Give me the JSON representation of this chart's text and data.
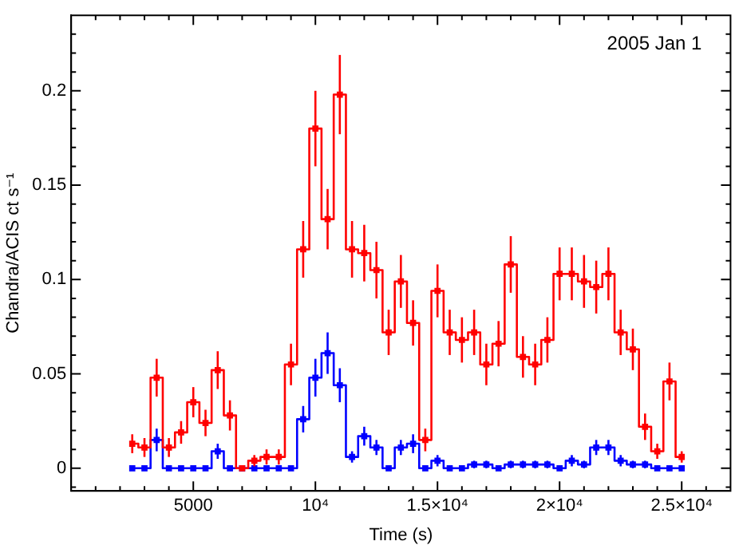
{
  "chart_data": {
    "type": "step",
    "xlabel": "Time (s)",
    "ylabel": "Chandra/ACIS ct s⁻¹",
    "annotations": [
      "2005 Jan 1"
    ],
    "x": [
      2500,
      3000,
      3500,
      4000,
      4500,
      5000,
      5500,
      6000,
      6500,
      7000,
      7500,
      8000,
      8500,
      9000,
      9500,
      10000,
      10500,
      11000,
      11500,
      12000,
      12500,
      13000,
      13500,
      14000,
      14500,
      15000,
      15500,
      16000,
      16500,
      17000,
      17500,
      18000,
      18500,
      19000,
      19500,
      20000,
      20500,
      21000,
      21500,
      22000,
      22500,
      23000,
      23500,
      24000,
      24500,
      25000
    ],
    "series": [
      {
        "color": "#ff0000",
        "values": [
          0.013,
          0.011,
          0.048,
          0.011,
          0.019,
          0.035,
          0.024,
          0.052,
          0.028,
          0,
          0.004,
          0.006,
          0.006,
          0.055,
          0.116,
          0.18,
          0.132,
          0.198,
          0.116,
          0.114,
          0.105,
          0.072,
          0.099,
          0.077,
          0.015,
          0.094,
          0.072,
          0.068,
          0.072,
          0.055,
          0.066,
          0.108,
          0.059,
          0.055,
          0.068,
          0.103,
          0.103,
          0.099,
          0.096,
          0.103,
          0.072,
          0.063,
          0.022,
          0.009,
          0.046,
          0.006
        ],
        "errors": [
          0.005,
          0.005,
          0.01,
          0.005,
          0.006,
          0.008,
          0.007,
          0.01,
          0.008,
          null,
          0.003,
          0.004,
          0.004,
          0.011,
          0.015,
          0.02,
          0.016,
          0.021,
          0.015,
          0.015,
          0.015,
          0.012,
          0.014,
          0.012,
          0.006,
          0.014,
          0.012,
          0.012,
          0.012,
          0.011,
          0.012,
          0.015,
          0.011,
          0.011,
          0.012,
          0.014,
          0.014,
          0.014,
          0.014,
          0.014,
          0.012,
          0.011,
          0.007,
          0.004,
          0.01,
          0.003
        ]
      },
      {
        "color": "#0000ff",
        "values": [
          0,
          0,
          0.015,
          0,
          0,
          0,
          0,
          0.009,
          0,
          0,
          0,
          0,
          0,
          0,
          0.026,
          0.048,
          0.061,
          0.044,
          0.006,
          0.017,
          0.011,
          0,
          0.011,
          0.013,
          0,
          0.004,
          0,
          0,
          0.002,
          0.002,
          0,
          0.002,
          0.002,
          0.002,
          0.002,
          0,
          0.004,
          0.002,
          0.011,
          0.011,
          0.004,
          0.002,
          0.002,
          0,
          0,
          0
        ],
        "errors": [
          null,
          null,
          0.006,
          null,
          null,
          null,
          null,
          0.004,
          null,
          null,
          null,
          null,
          null,
          null,
          0.007,
          0.01,
          0.011,
          0.009,
          0.003,
          0.005,
          0.004,
          null,
          0.004,
          0.005,
          null,
          0.003,
          null,
          null,
          0.002,
          0.002,
          null,
          0.002,
          0.002,
          0.002,
          0.002,
          null,
          0.003,
          0.002,
          0.004,
          0.004,
          0.003,
          0.002,
          0.002,
          null,
          null,
          null
        ]
      }
    ],
    "xlim": [
      0,
      27000
    ],
    "xticks": [
      {
        "value": 1000,
        "label": null
      },
      {
        "value": 2000,
        "label": null
      },
      {
        "value": 3000,
        "label": null
      },
      {
        "value": 4000,
        "label": null
      },
      5000,
      {
        "value": 6000,
        "label": null
      },
      {
        "value": 7000,
        "label": null
      },
      {
        "value": 8000,
        "label": null
      },
      {
        "value": 9000,
        "label": null
      },
      {
        "value": 10000,
        "label": "10⁴"
      },
      {
        "value": 11000,
        "label": null
      },
      {
        "value": 12000,
        "label": null
      },
      {
        "value": 13000,
        "label": null
      },
      {
        "value": 14000,
        "label": null
      },
      {
        "value": 15000,
        "label": "1.5×10⁴"
      },
      {
        "value": 16000,
        "label": null
      },
      {
        "value": 17000,
        "label": null
      },
      {
        "value": 18000,
        "label": null
      },
      {
        "value": 19000,
        "label": null
      },
      {
        "value": 20000,
        "label": "2×10⁴"
      },
      {
        "value": 21000,
        "label": null
      },
      {
        "value": 22000,
        "label": null
      },
      {
        "value": 23000,
        "label": null
      },
      {
        "value": 24000,
        "label": null
      },
      {
        "value": 25000,
        "label": "2.5×10⁴"
      },
      {
        "value": 26000,
        "label": null
      }
    ],
    "ylim": [
      -0.012,
      0.24
    ],
    "yticks": [
      {
        "value": -0.01,
        "label": null
      },
      0,
      {
        "value": 0.01,
        "label": null
      },
      {
        "value": 0.02,
        "label": null
      },
      {
        "value": 0.03,
        "label": null
      },
      {
        "value": 0.04,
        "label": null
      },
      0.05,
      {
        "value": 0.06,
        "label": null
      },
      {
        "value": 0.07,
        "label": null
      },
      {
        "value": 0.08,
        "label": null
      },
      {
        "value": 0.09,
        "label": null
      },
      0.1,
      {
        "value": 0.11,
        "label": null
      },
      {
        "value": 0.12,
        "label": null
      },
      {
        "value": 0.13,
        "label": null
      },
      {
        "value": 0.14,
        "label": null
      },
      0.15,
      {
        "value": 0.16,
        "label": null
      },
      {
        "value": 0.17,
        "label": null
      },
      {
        "value": 0.18,
        "label": null
      },
      {
        "value": 0.19,
        "label": null
      },
      0.2,
      {
        "value": 0.21,
        "label": null
      },
      {
        "value": 0.22,
        "label": null
      },
      {
        "value": 0.23,
        "label": null
      }
    ],
    "marker": "square",
    "line_style": "solid",
    "grid": false,
    "legend": false
  }
}
